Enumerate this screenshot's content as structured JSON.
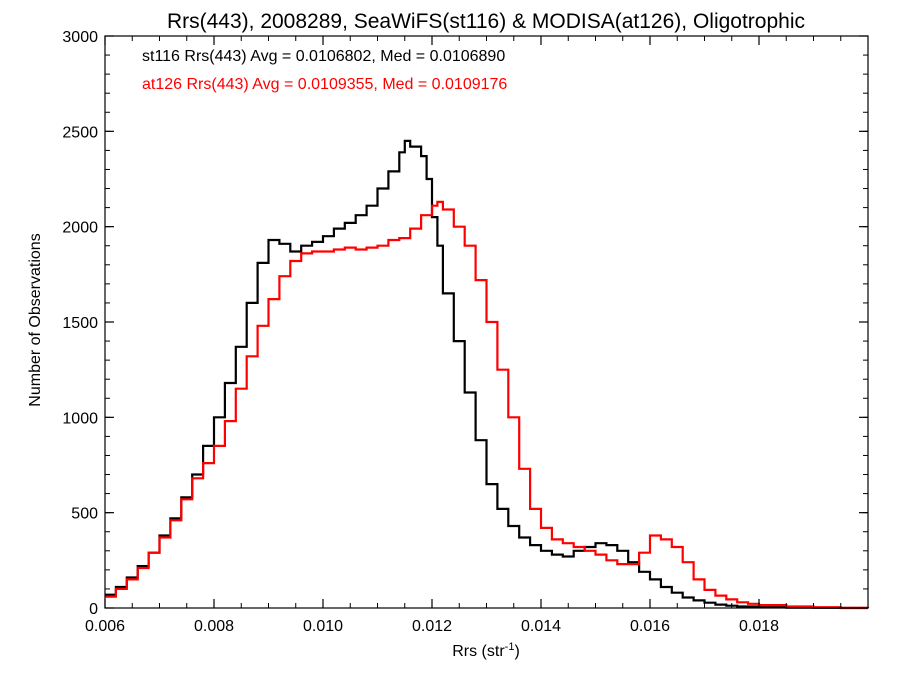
{
  "chart_data": {
    "type": "line",
    "step": true,
    "title": "Rrs(443), 2008289, SeaWiFS(st116) & MODISA(at126), Oligotrophic",
    "xlabel": "Rrs (str",
    "xlabel_sup": "-1",
    "xlabel_suffix": ")",
    "ylabel": "Number of Observations",
    "xlim": [
      0.006,
      0.02
    ],
    "ylim": [
      0,
      3000
    ],
    "x_ticks": [
      {
        "value": 0.006,
        "label": "0.006"
      },
      {
        "value": 0.008,
        "label": "0.008"
      },
      {
        "value": 0.01,
        "label": "0.010"
      },
      {
        "value": 0.012,
        "label": "0.012"
      },
      {
        "value": 0.014,
        "label": "0.014"
      },
      {
        "value": 0.016,
        "label": "0.016"
      },
      {
        "value": 0.018,
        "label": "0.018"
      }
    ],
    "y_ticks": [
      {
        "value": 0,
        "label": "0"
      },
      {
        "value": 500,
        "label": "500"
      },
      {
        "value": 1000,
        "label": "1000"
      },
      {
        "value": 1500,
        "label": "1500"
      },
      {
        "value": 2000,
        "label": "2000"
      },
      {
        "value": 2500,
        "label": "2500"
      },
      {
        "value": 3000,
        "label": "3000"
      }
    ],
    "annotations": [
      {
        "text": "st116 Rrs(443) Avg = 0.0106802, Med = 0.0106890",
        "color": "#000000"
      },
      {
        "text": "at126 Rrs(443) Avg = 0.0109355, Med = 0.0109176",
        "color": "#ff0000"
      }
    ],
    "series": [
      {
        "color": "#000000",
        "points": [
          [
            0.006,
            70
          ],
          [
            0.0062,
            110
          ],
          [
            0.0064,
            160
          ],
          [
            0.0066,
            220
          ],
          [
            0.0068,
            290
          ],
          [
            0.007,
            380
          ],
          [
            0.0072,
            470
          ],
          [
            0.0074,
            580
          ],
          [
            0.0076,
            700
          ],
          [
            0.0078,
            850
          ],
          [
            0.008,
            1000
          ],
          [
            0.0082,
            1180
          ],
          [
            0.0084,
            1370
          ],
          [
            0.0086,
            1600
          ],
          [
            0.0088,
            1810
          ],
          [
            0.009,
            1930
          ],
          [
            0.0092,
            1910
          ],
          [
            0.0094,
            1870
          ],
          [
            0.0096,
            1900
          ],
          [
            0.0098,
            1920
          ],
          [
            0.01,
            1950
          ],
          [
            0.0102,
            1990
          ],
          [
            0.0104,
            2020
          ],
          [
            0.0106,
            2060
          ],
          [
            0.0108,
            2110
          ],
          [
            0.011,
            2200
          ],
          [
            0.0112,
            2290
          ],
          [
            0.0114,
            2390
          ],
          [
            0.0115,
            2450
          ],
          [
            0.0116,
            2420
          ],
          [
            0.0118,
            2370
          ],
          [
            0.0119,
            2250
          ],
          [
            0.012,
            2050
          ],
          [
            0.0121,
            1900
          ],
          [
            0.0122,
            1650
          ],
          [
            0.0124,
            1400
          ],
          [
            0.0126,
            1130
          ],
          [
            0.0128,
            880
          ],
          [
            0.013,
            650
          ],
          [
            0.0132,
            520
          ],
          [
            0.0134,
            430
          ],
          [
            0.0136,
            370
          ],
          [
            0.0138,
            330
          ],
          [
            0.014,
            300
          ],
          [
            0.0142,
            280
          ],
          [
            0.0144,
            270
          ],
          [
            0.0146,
            300
          ],
          [
            0.0148,
            320
          ],
          [
            0.015,
            340
          ],
          [
            0.0152,
            330
          ],
          [
            0.0154,
            300
          ],
          [
            0.0156,
            240
          ],
          [
            0.0158,
            190
          ],
          [
            0.016,
            150
          ],
          [
            0.0162,
            110
          ],
          [
            0.0164,
            80
          ],
          [
            0.0166,
            55
          ],
          [
            0.0168,
            40
          ],
          [
            0.017,
            28
          ],
          [
            0.0172,
            18
          ],
          [
            0.0174,
            12
          ],
          [
            0.0176,
            8
          ],
          [
            0.018,
            4
          ],
          [
            0.0185,
            2
          ],
          [
            0.019,
            1
          ],
          [
            0.0195,
            0
          ]
        ]
      },
      {
        "color": "#ff0000",
        "points": [
          [
            0.006,
            60
          ],
          [
            0.0062,
            100
          ],
          [
            0.0064,
            150
          ],
          [
            0.0066,
            210
          ],
          [
            0.0068,
            290
          ],
          [
            0.007,
            370
          ],
          [
            0.0072,
            460
          ],
          [
            0.0074,
            570
          ],
          [
            0.0076,
            680
          ],
          [
            0.0078,
            760
          ],
          [
            0.008,
            850
          ],
          [
            0.0082,
            980
          ],
          [
            0.0084,
            1150
          ],
          [
            0.0086,
            1320
          ],
          [
            0.0088,
            1480
          ],
          [
            0.009,
            1620
          ],
          [
            0.0092,
            1740
          ],
          [
            0.0094,
            1820
          ],
          [
            0.0096,
            1860
          ],
          [
            0.0098,
            1870
          ],
          [
            0.01,
            1870
          ],
          [
            0.0102,
            1880
          ],
          [
            0.0104,
            1890
          ],
          [
            0.0106,
            1880
          ],
          [
            0.0108,
            1890
          ],
          [
            0.011,
            1900
          ],
          [
            0.0112,
            1930
          ],
          [
            0.0114,
            1940
          ],
          [
            0.0116,
            1990
          ],
          [
            0.0118,
            2060
          ],
          [
            0.012,
            2110
          ],
          [
            0.0121,
            2130
          ],
          [
            0.0122,
            2090
          ],
          [
            0.0124,
            2000
          ],
          [
            0.0126,
            1900
          ],
          [
            0.0128,
            1720
          ],
          [
            0.013,
            1500
          ],
          [
            0.0132,
            1250
          ],
          [
            0.0134,
            1000
          ],
          [
            0.0136,
            730
          ],
          [
            0.0138,
            520
          ],
          [
            0.014,
            420
          ],
          [
            0.0142,
            360
          ],
          [
            0.0144,
            340
          ],
          [
            0.0146,
            320
          ],
          [
            0.0148,
            300
          ],
          [
            0.015,
            280
          ],
          [
            0.0152,
            250
          ],
          [
            0.0154,
            230
          ],
          [
            0.0156,
            230
          ],
          [
            0.0158,
            290
          ],
          [
            0.016,
            380
          ],
          [
            0.0162,
            360
          ],
          [
            0.0164,
            320
          ],
          [
            0.0166,
            240
          ],
          [
            0.0168,
            150
          ],
          [
            0.017,
            95
          ],
          [
            0.0172,
            65
          ],
          [
            0.0174,
            45
          ],
          [
            0.0176,
            30
          ],
          [
            0.0178,
            22
          ],
          [
            0.018,
            15
          ],
          [
            0.0185,
            8
          ],
          [
            0.019,
            4
          ],
          [
            0.0195,
            1
          ],
          [
            0.02,
            0
          ]
        ]
      }
    ]
  }
}
